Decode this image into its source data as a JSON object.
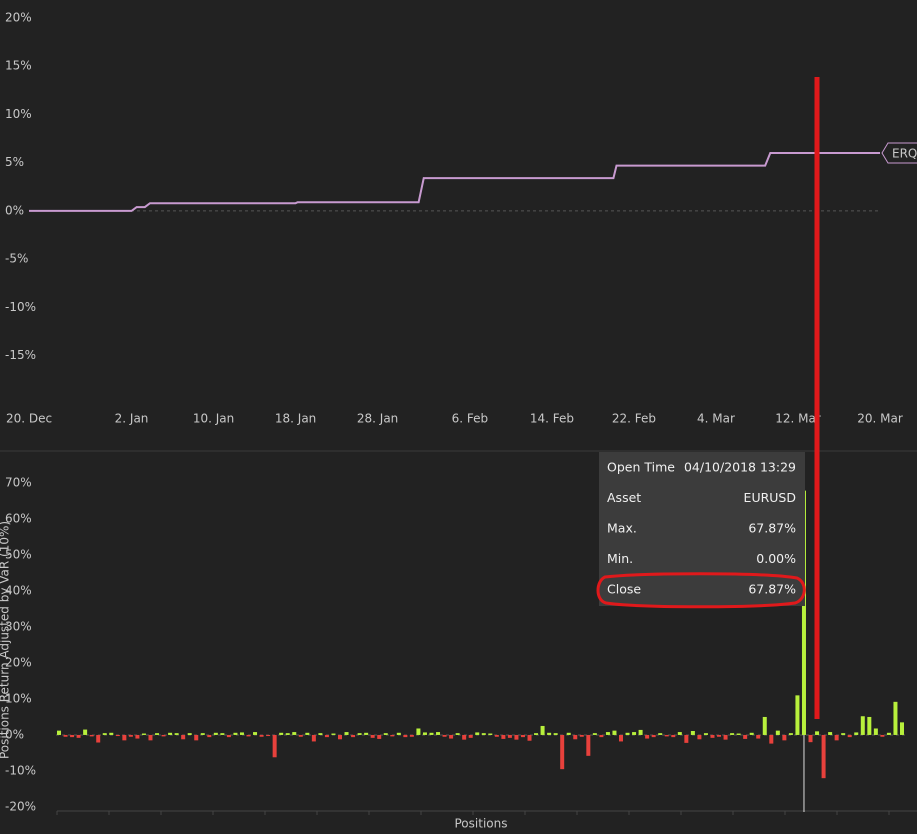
{
  "chart_data": [
    {
      "type": "line",
      "x": [
        0,
        10,
        10.5,
        11.3,
        11.8,
        26,
        26.2,
        38,
        38.5,
        57,
        57.3,
        71.8,
        72.3,
        83
      ],
      "series": [
        {
          "name": "ERQ",
          "color": "#c89ad0",
          "values": [
            0,
            0,
            0.4,
            0.4,
            0.8,
            0.8,
            0.9,
            0.9,
            3.4,
            3.4,
            4.7,
            4.7,
            6.0,
            6.0
          ]
        }
      ],
      "xlim": [
        0,
        83
      ],
      "xticks": [
        {
          "value": 0,
          "label": "20. Dec"
        },
        {
          "value": 10,
          "label": "2. Jan"
        },
        {
          "value": 18,
          "label": "10. Jan"
        },
        {
          "value": 26,
          "label": "18. Jan"
        },
        {
          "value": 34,
          "label": "28. Jan"
        },
        {
          "value": 43,
          "label": "6. Feb"
        },
        {
          "value": 51,
          "label": "14. Feb"
        },
        {
          "value": 59,
          "label": "22. Feb"
        },
        {
          "value": 67,
          "label": "4. Mar"
        },
        {
          "value": 75,
          "label": "12. Mar"
        },
        {
          "value": 83,
          "label": "20. Mar"
        }
      ],
      "ylim": [
        -19.6,
        20
      ],
      "yticks": [
        {
          "value": -15,
          "label": "-15%"
        },
        {
          "value": -10,
          "label": "-10%"
        },
        {
          "value": -5,
          "label": "-5%"
        },
        {
          "value": 0,
          "label": "0%"
        },
        {
          "value": 5,
          "label": "5%"
        },
        {
          "value": 10,
          "label": "10%"
        },
        {
          "value": 15,
          "label": "15%"
        },
        {
          "value": 20,
          "label": "20%"
        }
      ]
    },
    {
      "type": "bar",
      "x_label": "Positions",
      "y_label": "Positions Return Adjusted by VaR (10%)",
      "positive_color": "#b8f03c",
      "negative_color": "#e8413c",
      "highlighted_bar": 114,
      "values": [
        1.2,
        -0.5,
        -0.6,
        -0.8,
        1.5,
        -0.4,
        -2.1,
        0.5,
        0.6,
        -0.3,
        -1.5,
        -0.5,
        -1,
        0.4,
        -1.5,
        0.5,
        -0.4,
        0.6,
        0.5,
        -1.2,
        0.5,
        -1.5,
        0.5,
        -0.6,
        0.6,
        0.5,
        -0.6,
        0.6,
        0.7,
        -0.4,
        0.8,
        -0.5,
        -0.3,
        -6.2,
        0.6,
        0.5,
        0.8,
        -0.5,
        0.6,
        -1.8,
        0.5,
        -0.6,
        0.4,
        -1.2,
        0.8,
        -0.6,
        0.5,
        0.6,
        -0.8,
        -1.1,
        0.5,
        -0.4,
        0.6,
        -0.6,
        -0.5,
        1.8,
        0.7,
        0.6,
        0.8,
        -0.5,
        -1,
        0.5,
        -1.3,
        -0.8,
        0.7,
        0.5,
        0.4,
        -0.5,
        -1.1,
        -0.8,
        -1.3,
        -0.6,
        -1.6,
        0.5,
        2.5,
        0.6,
        0.5,
        -9.5,
        0.6,
        -1.2,
        -0.5,
        -5.8,
        0.5,
        -0.6,
        0.8,
        1.2,
        -1.8,
        0.6,
        0.8,
        1.4,
        -1,
        -0.6,
        0.5,
        -0.4,
        -0.6,
        0.8,
        -2.2,
        1.1,
        -1.2,
        0.5,
        -0.8,
        -0.5,
        -1.3,
        0.5,
        0.4,
        -1.1,
        0.6,
        -1,
        5,
        -2.4,
        1.2,
        -1.5,
        0.5,
        11,
        67.87,
        -2,
        1,
        -12,
        0.8,
        -1.5,
        0.5,
        -0.6,
        0.7,
        5.2,
        5,
        1.8,
        -0.5,
        0.6,
        9.2,
        3.5
      ],
      "ylim": [
        -21.4,
        73.6
      ],
      "yticks": [
        {
          "value": -20,
          "label": "-20%"
        },
        {
          "value": -10,
          "label": "-10%"
        },
        {
          "value": 0,
          "label": "0%"
        },
        {
          "value": 10,
          "label": "10%"
        },
        {
          "value": 20,
          "label": "20%"
        },
        {
          "value": 30,
          "label": "30%"
        },
        {
          "value": 40,
          "label": "40%"
        },
        {
          "value": 50,
          "label": "50%"
        },
        {
          "value": 60,
          "label": "60%"
        },
        {
          "value": 70,
          "label": "70%"
        }
      ],
      "tooltip": {
        "rows": [
          [
            "Open Time",
            "04/10/2018 13:29"
          ],
          [
            "Asset",
            "EURUSD"
          ],
          [
            "Max.",
            "67.87%"
          ],
          [
            "Min.",
            "0.00%"
          ],
          [
            "Close",
            "67.87%"
          ]
        ]
      }
    }
  ]
}
